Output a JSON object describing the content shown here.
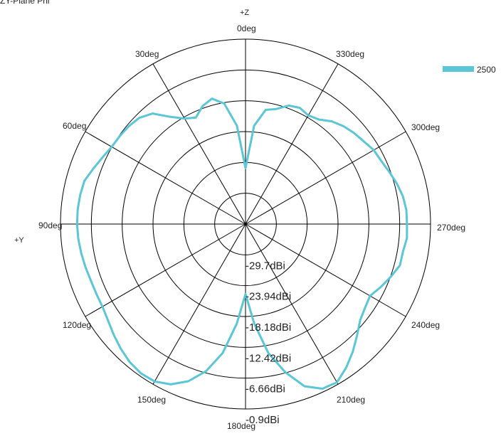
{
  "chart_data": {
    "type": "polar-line",
    "title": "ZY-Plane Phi",
    "top_axis_label": "+Z",
    "left_axis_label": "+Y",
    "angle_direction": "counterclockwise",
    "zero_angle_at": "top",
    "angle_labels": [
      "0deg",
      "30deg",
      "60deg",
      "90deg",
      "120deg",
      "150deg",
      "180deg",
      "210deg",
      "240deg",
      "270deg",
      "300deg",
      "330deg"
    ],
    "angle_label_values": [
      0,
      30,
      60,
      90,
      120,
      150,
      180,
      210,
      240,
      270,
      300,
      330
    ],
    "radial_ticks": [
      -29.7,
      -23.94,
      -18.18,
      -12.42,
      -6.66,
      -0.9
    ],
    "radial_tick_labels": [
      "-29.7dBi",
      "-23.94dBi",
      "-18.18dBi",
      "-12.42dBi",
      "-6.66dBi",
      "-0.9dBi"
    ],
    "r_range": [
      -35.46,
      -0.9
    ],
    "grid": true,
    "legend_position": "top-right",
    "series": [
      {
        "name": "2500",
        "color": "#5bc6d6",
        "angles": [
          0,
          5,
          10,
          15,
          20,
          25,
          30,
          35,
          40,
          45,
          50,
          55,
          60,
          65,
          70,
          75,
          80,
          85,
          90,
          95,
          100,
          105,
          110,
          115,
          120,
          125,
          130,
          135,
          140,
          145,
          150,
          155,
          160,
          165,
          170,
          175,
          180,
          185,
          190,
          195,
          200,
          205,
          210,
          215,
          220,
          225,
          230,
          235,
          240,
          245,
          250,
          255,
          260,
          265,
          270,
          275,
          280,
          285,
          290,
          295,
          300,
          305,
          310,
          315,
          320,
          325,
          330,
          335,
          340,
          345,
          350,
          355
        ],
        "values": [
          -25.0,
          -17.0,
          -12.6,
          -11.2,
          -12.0,
          -13.5,
          -12.7,
          -11.0,
          -8.5,
          -7.4,
          -7.0,
          -6.8,
          -6.6,
          -6.0,
          -5.2,
          -4.3,
          -4.1,
          -4.0,
          -4.0,
          -4.1,
          -4.3,
          -4.5,
          -4.7,
          -4.7,
          -4.6,
          -4.1,
          -3.3,
          -2.5,
          -1.8,
          -1.4,
          -1.5,
          -2.4,
          -4.2,
          -7.0,
          -11.0,
          -16.8,
          -22.4,
          -16.8,
          -11.0,
          -6.8,
          -3.2,
          -1.5,
          -1.3,
          -2.7,
          -4.3,
          -6.0,
          -7.5,
          -8.2,
          -8.6,
          -7.6,
          -6.6,
          -5.6,
          -5.6,
          -5.2,
          -5.3,
          -5.3,
          -5.6,
          -6.2,
          -6.9,
          -7.5,
          -7.8,
          -8.5,
          -9.0,
          -9.6,
          -10.4,
          -11.6,
          -12.0,
          -11.5,
          -11.9,
          -13.2,
          -13.8,
          -17.0
        ]
      }
    ]
  }
}
